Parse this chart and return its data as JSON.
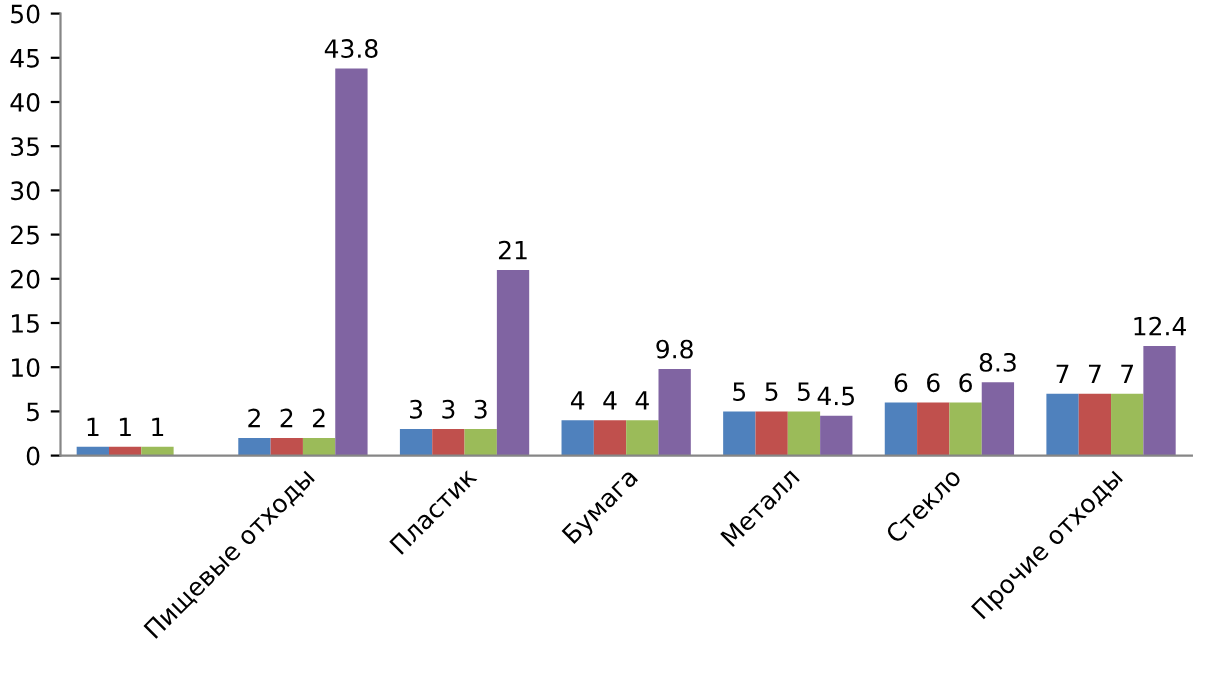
{
  "chart_data": {
    "type": "bar",
    "categories": [
      null,
      "Пищевые отходы",
      "Пластик",
      "Бумага",
      "Металл",
      "Стекло",
      "Прочие отходы"
    ],
    "series": [
      {
        "color": "#4f81bd",
        "values": [
          1,
          2,
          3,
          4,
          5,
          6,
          7
        ]
      },
      {
        "color": "#c0504d",
        "values": [
          1,
          2,
          3,
          4,
          5,
          6,
          7
        ]
      },
      {
        "color": "#9bbb59",
        "values": [
          1,
          2,
          3,
          4,
          5,
          6,
          7
        ]
      },
      {
        "color": "#8064a2",
        "values": [
          null,
          43.8,
          21,
          9.8,
          4.5,
          8.3,
          12.4
        ]
      }
    ],
    "ylim": [
      0,
      50
    ],
    "yticks": [
      0,
      5,
      10,
      15,
      20,
      25,
      30,
      35,
      40,
      45,
      50
    ],
    "data_labels": true,
    "grid": false,
    "legend": false
  }
}
